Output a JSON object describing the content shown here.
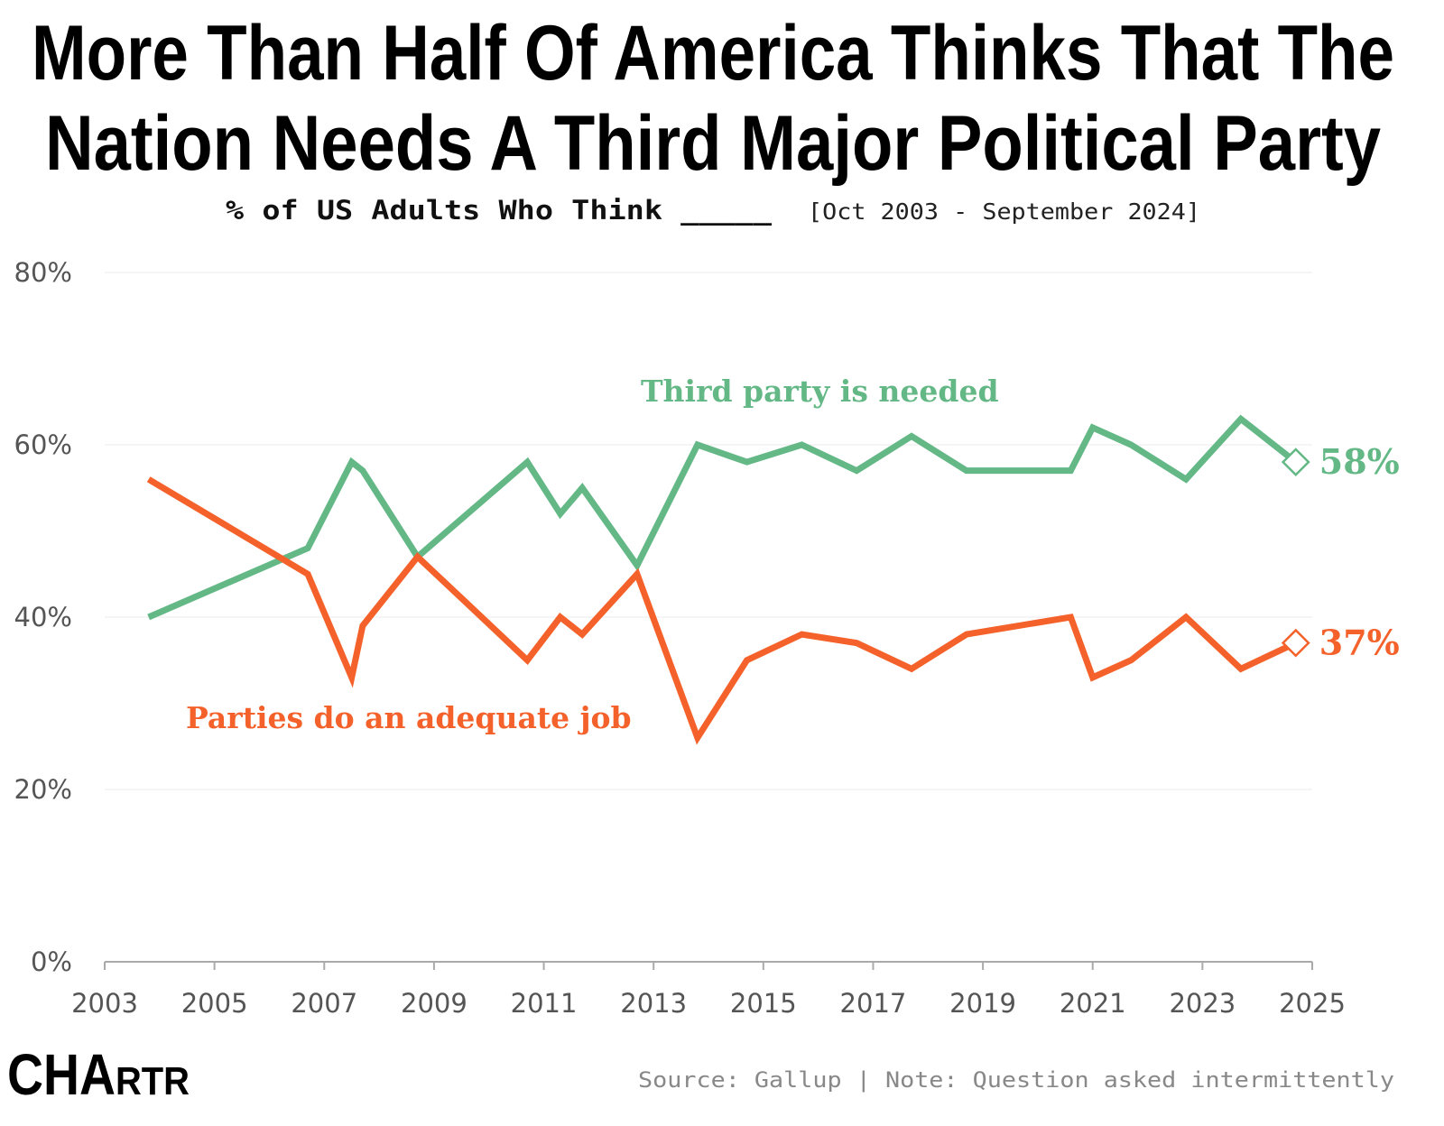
{
  "title": {
    "line1": "More Than Half Of America Thinks That The",
    "line2": "Nation Needs A Third Major Political Party"
  },
  "subtitle": "% of US Adults Who Think _____",
  "date_range": "[Oct 2003 - September 2024]",
  "source": "Source: Gallup | Note: Question asked intermittently",
  "logo": "CHARTR",
  "chart_data": {
    "type": "line",
    "title": "More Than Half Of America Thinks That The Nation Needs A Third Major Political Party",
    "xlim": [
      2003,
      2025
    ],
    "ylim": [
      0,
      80
    ],
    "x_ticks": [
      "2003",
      "2005",
      "2007",
      "2009",
      "2011",
      "2013",
      "2015",
      "2017",
      "2019",
      "2021",
      "2023",
      "2025"
    ],
    "y_ticks": [
      "0%",
      "20%",
      "40%",
      "60%",
      "80%"
    ],
    "grid": "horizontal",
    "x": [
      2003.8,
      2006.7,
      2007.5,
      2007.7,
      2008.7,
      2010.7,
      2011.3,
      2011.7,
      2012.7,
      2013.8,
      2014.7,
      2015.7,
      2016.7,
      2017.7,
      2018.7,
      2020.6,
      2021.0,
      2021.7,
      2022.7,
      2023.7,
      2024.7
    ],
    "series": [
      {
        "name": "Third party is needed",
        "color": "#63b886",
        "end_label": "58%",
        "values": [
          40,
          48,
          58,
          57,
          47,
          58,
          52,
          55,
          46,
          60,
          58,
          60,
          57,
          61,
          57,
          57,
          62,
          60,
          56,
          63,
          58
        ]
      },
      {
        "name": "Parties do an adequate job",
        "color": "#f5612a",
        "end_label": "37%",
        "values": [
          56,
          45,
          33,
          39,
          47,
          35,
          40,
          38,
          45,
          26,
          35,
          38,
          37,
          34,
          38,
          40,
          33,
          35,
          40,
          34,
          37
        ]
      }
    ]
  }
}
